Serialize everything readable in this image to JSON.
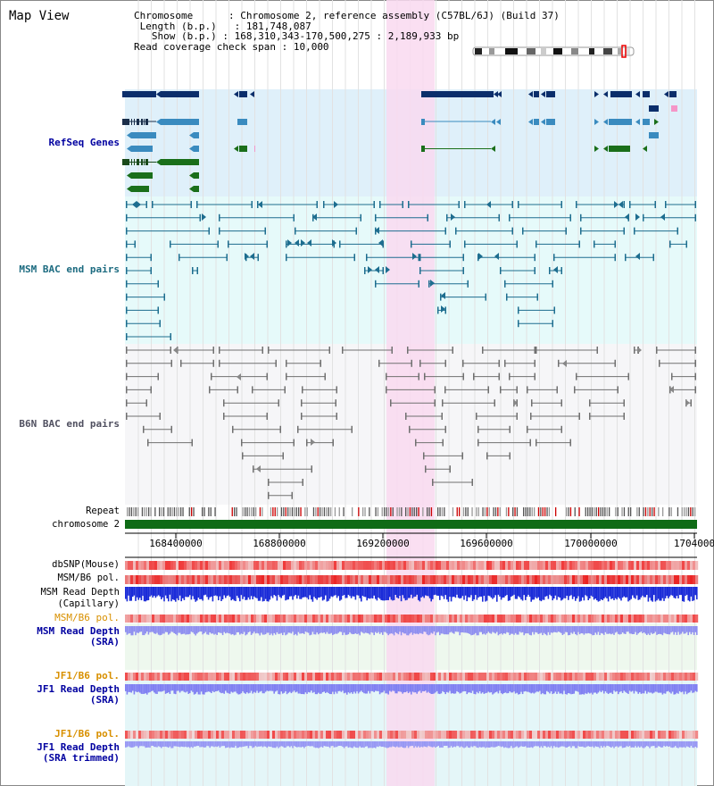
{
  "title": "Map View",
  "info": {
    "chromosome_key": "Chromosome",
    "chromosome_val": ": Chromosome 2, reference assembly (C57BL/6J) (Build 37)",
    "length_key": "Length (b.p.)",
    "length_val": ": 181,748,087",
    "show_key": "Show (b.p.)",
    "show_val": ": 168,310,343-170,500,275 : 2,189,933 bp",
    "coverage_key": "Read coverage check span",
    "coverage_val": ": 10,000"
  },
  "tracks": {
    "refseq": "RefSeq Genes",
    "msm_bac": "MSM BAC end pairs",
    "b6n_bac": "B6N BAC end pairs",
    "repeat": "Repeat",
    "chromosome": "chromosome 2",
    "dbsnp": "dbSNP(Mouse)",
    "msm_b6_pol": "MSM/B6 pol.",
    "msm_read_depth_cap_1": "MSM Read Depth",
    "msm_read_depth_cap_2": "(Capillary)",
    "msm_b6_pol_2": "MSM/B6 pol.",
    "msm_read_depth_sra_1": "MSM Read Depth",
    "msm_read_depth_sra_2": "(SRA)",
    "jf1_b6_pol": "JF1/B6 pol.",
    "jf1_read_depth_1": "JF1 Read Depth",
    "jf1_read_depth_2": "(SRA)",
    "jf1_b6_pol_2": "JF1/B6 pol.",
    "jf1_read_depth_trim_1": "JF1 Read Depth",
    "jf1_read_depth_trim_2": "(SRA trimmed)"
  },
  "axis": {
    "ticks": [
      "168400000",
      "168800000",
      "169200000",
      "169600000",
      "170000000",
      "1704000"
    ]
  },
  "colors": {
    "refseq_bg": "#dff0fa",
    "msm_bg": "#e6fafa",
    "b6n_bg": "#f6f6f8",
    "highlight": "#f9d9f0",
    "gene_dark": "#0b2e6b",
    "gene_mid": "#3a8bbf",
    "gene_green": "#1a6f1a",
    "msm_line": "#1d6d8f",
    "b6n_line": "#707070",
    "chrom_bar": "#0f6b16",
    "label_blue": "#0000a0",
    "label_teal": "#1c6b80",
    "label_gray": "#505060",
    "label_orange": "#d89000"
  }
}
